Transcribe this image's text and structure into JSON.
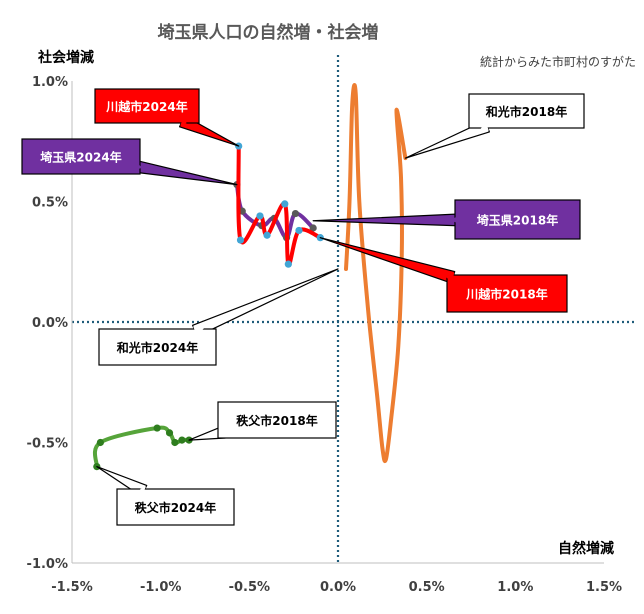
{
  "title": "埼玉県人口の自然増・社会増",
  "source": "統計からみた市町村のすがた",
  "chart_data": {
    "type": "line",
    "xlabel": "自然増減",
    "ylabel": "社会増減",
    "xlim": [
      -1.5,
      1.5
    ],
    "ylim": [
      -1.0,
      1.0
    ],
    "xticks": [
      -1.5,
      -1.0,
      -0.5,
      0.0,
      0.5,
      1.0,
      1.5
    ],
    "yticks": [
      -1.0,
      -0.5,
      0.0,
      0.5,
      1.0
    ],
    "xtick_labels": [
      "-1.5%",
      "-1.0%",
      "-0.5%",
      "0.0%",
      "0.5%",
      "1.0%",
      "1.5%"
    ],
    "ytick_labels": [
      "-1.0%",
      "-0.5%",
      "0.0%",
      "0.5%",
      "1.0%"
    ],
    "grid": false,
    "series": [
      {
        "id": "wako",
        "color": "#ED7D31",
        "marker": false,
        "x": [
          0.38,
          0.33,
          0.355,
          0.36,
          0.34,
          0.3,
          0.27,
          0.25,
          0.22,
          0.17,
          0.12,
          0.1,
          0.08,
          0.065,
          0.045
        ],
        "y": [
          0.68,
          0.88,
          0.6,
          0.29,
          -0.1,
          -0.4,
          -0.57,
          -0.52,
          -0.3,
          0.05,
          0.5,
          0.95,
          0.9,
          0.5,
          0.22
        ]
      },
      {
        "id": "saitama",
        "color": "#7030A0",
        "marker": true,
        "marker_color": "#595959",
        "x": [
          -0.14,
          -0.24,
          -0.29,
          -0.36,
          -0.43,
          -0.54,
          -0.57
        ],
        "y": [
          0.39,
          0.45,
          0.35,
          0.43,
          0.4,
          0.46,
          0.57
        ]
      },
      {
        "id": "kawagoe",
        "color": "#FF0000",
        "marker": true,
        "marker_color": "#41A5D5",
        "x": [
          -0.1,
          -0.22,
          -0.28,
          -0.3,
          -0.4,
          -0.44,
          -0.55,
          -0.56
        ],
        "y": [
          0.35,
          0.38,
          0.24,
          0.49,
          0.36,
          0.44,
          0.34,
          0.73
        ]
      },
      {
        "id": "chichibu",
        "color": "#56A43A",
        "marker": true,
        "marker_color": "#2E7D1E",
        "x": [
          -0.84,
          -0.88,
          -0.92,
          -0.95,
          -1.02,
          -1.34,
          -1.36
        ],
        "y": [
          -0.49,
          -0.49,
          -0.5,
          -0.46,
          -0.44,
          -0.5,
          -0.6
        ]
      }
    ],
    "callouts": [
      {
        "text": "川越市2024年",
        "fill": "#FF0000",
        "text_color": "#FFFFFF",
        "target": [
          -0.56,
          0.73
        ]
      },
      {
        "text": "埼玉県2024年",
        "fill": "#7030A0",
        "text_color": "#FFFFFF",
        "target": [
          -0.57,
          0.57
        ]
      },
      {
        "text": "和光市2018年",
        "fill": "#FFFFFF",
        "text_color": "#000000",
        "target": [
          0.38,
          0.68
        ]
      },
      {
        "text": "埼玉県2018年",
        "fill": "#7030A0",
        "text_color": "#FFFFFF",
        "target": [
          -0.14,
          0.42
        ]
      },
      {
        "text": "川越市2018年",
        "fill": "#FF0000",
        "text_color": "#FFFFFF",
        "target": [
          -0.1,
          0.35
        ]
      },
      {
        "text": "和光市2024年",
        "fill": "#FFFFFF",
        "text_color": "#000000",
        "target": [
          0.0,
          0.22
        ]
      },
      {
        "text": "秩父市2018年",
        "fill": "#FFFFFF",
        "text_color": "#000000",
        "target": [
          -0.84,
          -0.49
        ]
      },
      {
        "text": "秩父市2024年",
        "fill": "#FFFFFF",
        "text_color": "#000000",
        "target": [
          -1.36,
          -0.6
        ]
      }
    ]
  }
}
